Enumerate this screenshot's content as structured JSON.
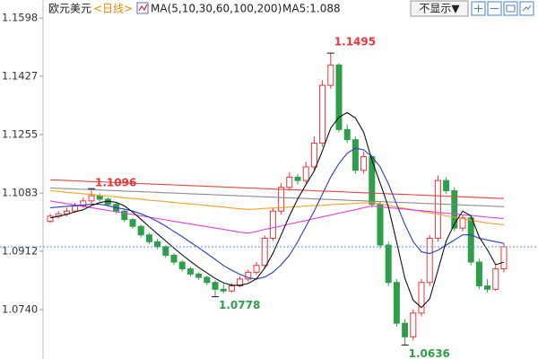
{
  "chart_data": {
    "type": "candlestick",
    "title": "欧元美元",
    "period": "<日线>",
    "ma_label": "MA(5,10,30,60,100,200)",
    "ma5_label": "MA5:1.088",
    "button": "不显示▼",
    "ylim": [
      1.0608,
      1.163
    ],
    "yticks": [
      1.1598,
      1.1427,
      1.1255,
      1.1083,
      1.0912,
      {
        "value": 1.074,
        "label": "1.0740"
      }
    ],
    "up_color": "#e8353b",
    "down_color": "#2e9e4a",
    "open": [
      1.1,
      1.1015,
      1.1022,
      1.103,
      1.1045,
      1.106,
      1.1075,
      1.1065,
      1.105,
      1.103,
      1.1005,
      1.0985,
      1.096,
      1.094,
      1.0925,
      1.09,
      1.088,
      1.086,
      1.0845,
      1.0835,
      1.082,
      1.08,
      1.0795,
      1.081,
      1.083,
      1.085,
      1.087,
      1.095,
      1.103,
      1.11,
      1.113,
      1.112,
      1.116,
      1.123,
      1.14,
      1.146,
      1.127,
      1.124,
      1.115,
      1.119,
      1.105,
      1.093,
      1.082,
      1.07,
      1.066,
      1.073,
      1.082,
      1.095,
      1.112,
      1.109,
      1.098,
      1.101,
      1.088,
      1.081,
      1.08,
      1.086
    ],
    "high": [
      1.1022,
      1.103,
      1.104,
      1.1055,
      1.107,
      1.1096,
      1.1082,
      1.107,
      1.1055,
      1.1036,
      1.101,
      1.099,
      1.0966,
      1.0948,
      1.093,
      1.0906,
      1.0886,
      1.0866,
      1.085,
      1.084,
      1.0826,
      1.0815,
      1.0818,
      1.0838,
      1.0858,
      1.088,
      1.0958,
      1.104,
      1.1112,
      1.1145,
      1.1138,
      1.1175,
      1.125,
      1.1415,
      1.1495,
      1.1465,
      1.1285,
      1.125,
      1.1205,
      1.1195,
      1.106,
      1.094,
      1.083,
      1.0712,
      1.074,
      1.083,
      1.096,
      1.1135,
      1.113,
      1.11,
      1.102,
      1.1015,
      1.089,
      1.083,
      1.087,
      1.0935
    ],
    "low": [
      1.0995,
      1.1008,
      1.1015,
      1.1025,
      1.104,
      1.1052,
      1.1058,
      1.1042,
      1.1022,
      1.0998,
      1.0978,
      1.0952,
      1.0932,
      1.0918,
      1.0892,
      1.0872,
      1.0852,
      1.0838,
      1.0828,
      1.0812,
      1.0778,
      1.0788,
      1.079,
      1.0805,
      1.0822,
      1.0842,
      1.0862,
      1.0942,
      1.102,
      1.109,
      1.1108,
      1.1112,
      1.115,
      1.122,
      1.139,
      1.1262,
      1.123,
      1.114,
      1.114,
      1.104,
      1.092,
      1.081,
      1.069,
      1.0636,
      1.065,
      1.072,
      1.081,
      1.094,
      1.108,
      1.097,
      1.097,
      1.087,
      1.08,
      1.079,
      1.0795,
      1.085
    ],
    "close": [
      1.1015,
      1.1022,
      1.103,
      1.1045,
      1.106,
      1.1075,
      1.1065,
      1.105,
      1.103,
      1.1005,
      1.0985,
      1.096,
      1.094,
      1.0925,
      1.09,
      1.088,
      1.086,
      1.0845,
      1.0835,
      1.082,
      1.08,
      1.0795,
      1.081,
      1.083,
      1.085,
      1.087,
      1.095,
      1.103,
      1.11,
      1.113,
      1.112,
      1.116,
      1.123,
      1.14,
      1.146,
      1.127,
      1.124,
      1.115,
      1.119,
      1.105,
      1.093,
      1.082,
      1.07,
      1.066,
      1.073,
      1.082,
      1.095,
      1.112,
      1.109,
      1.098,
      1.101,
      1.088,
      1.081,
      1.08,
      1.086,
      1.0925
    ],
    "series": [
      {
        "name": "MA200",
        "color": "#e0473f",
        "values": [
          1.1122,
          1.1121,
          1.112,
          1.1119,
          1.1118,
          1.1117,
          1.1116,
          1.1115,
          1.1114,
          1.1113,
          1.1112,
          1.1111,
          1.111,
          1.1109,
          1.1108,
          1.1107,
          1.1106,
          1.1105,
          1.1104,
          1.1103,
          1.1102,
          1.1101,
          1.11,
          1.1099,
          1.1098,
          1.1097,
          1.1096,
          1.1095,
          1.1094,
          1.1093,
          1.1092,
          1.1091,
          1.109,
          1.1089,
          1.1088,
          1.1087,
          1.1086,
          1.1085,
          1.1084,
          1.1083,
          1.1082,
          1.1081,
          1.108,
          1.1079,
          1.1078,
          1.1077,
          1.1076,
          1.1075,
          1.1074,
          1.1073,
          1.1072,
          1.1071,
          1.107,
          1.1069,
          1.1068,
          1.1067
        ]
      },
      {
        "name": "MA100",
        "color": "#8c8c8c",
        "values": [
          1.1098,
          1.1097,
          1.1096,
          1.1095,
          1.1094,
          1.1093,
          1.1092,
          1.1091,
          1.109,
          1.1089,
          1.1088,
          1.1087,
          1.1086,
          1.1085,
          1.1084,
          1.1083,
          1.1082,
          1.1081,
          1.108,
          1.1079,
          1.1078,
          1.1077,
          1.1076,
          1.1075,
          1.1074,
          1.1073,
          1.1072,
          1.1071,
          1.107,
          1.1069,
          1.1068,
          1.1067,
          1.1066,
          1.1065,
          1.1064,
          1.1063,
          1.1062,
          1.1061,
          1.106,
          1.1059,
          1.1058,
          1.1057,
          1.1056,
          1.1055,
          1.1054,
          1.1053,
          1.1052,
          1.1051,
          1.105,
          1.1049,
          1.1048,
          1.1047,
          1.1046,
          1.1045,
          1.1044,
          1.1043
        ]
      },
      {
        "name": "MA60",
        "color": "#f5a020",
        "values": [
          1.109,
          1.1088,
          1.1085,
          1.1083,
          1.1081,
          1.1079,
          1.1076,
          1.1074,
          1.1072,
          1.1069,
          1.1067,
          1.1065,
          1.1062,
          1.106,
          1.1058,
          1.1055,
          1.1053,
          1.1051,
          1.1049,
          1.1046,
          1.1044,
          1.1042,
          1.1039,
          1.1037,
          1.1035,
          1.1036,
          1.1038,
          1.1039,
          1.104,
          1.1042,
          1.1043,
          1.1045,
          1.1046,
          1.1047,
          1.1049,
          1.105,
          1.1051,
          1.1053,
          1.1054,
          1.1055,
          1.1051,
          1.1047,
          1.1042,
          1.1038,
          1.1034,
          1.1029,
          1.1025,
          1.1021,
          1.1016,
          1.1012,
          1.1008,
          1.1003,
          1.0999,
          1.0995,
          1.0992,
          1.099
        ]
      },
      {
        "name": "MA30",
        "color": "#e23ee0",
        "values": [
          1.106,
          1.1056,
          1.1052,
          1.1048,
          1.1044,
          1.104,
          1.1036,
          1.1032,
          1.1028,
          1.1024,
          1.102,
          1.1016,
          1.1012,
          1.1008,
          1.1004,
          1.1,
          1.0996,
          1.0992,
          1.0988,
          1.0984,
          1.098,
          1.0976,
          1.0972,
          1.0968,
          1.0965,
          1.097,
          1.0976,
          1.0981,
          1.0986,
          1.0992,
          1.0997,
          1.1002,
          1.1008,
          1.1013,
          1.1018,
          1.1024,
          1.1029,
          1.1034,
          1.104,
          1.1045,
          1.1043,
          1.104,
          1.1038,
          1.1036,
          1.1033,
          1.1031,
          1.1029,
          1.1026,
          1.1024,
          1.1022,
          1.1019,
          1.1017,
          1.1015,
          1.1012,
          1.101,
          1.1008
        ]
      },
      {
        "name": "MA10",
        "color": "#2b3dbd",
        "values": [
          1.104,
          1.1042,
          1.1044,
          1.1046,
          1.1048,
          1.105,
          1.105,
          1.1046,
          1.104,
          1.1036,
          1.103,
          1.1022,
          1.1012,
          1.1,
          1.0986,
          1.097,
          1.0955,
          1.0938,
          1.0922,
          1.0905,
          1.0888,
          1.087,
          1.0856,
          1.0844,
          1.0834,
          1.083,
          1.0836,
          1.085,
          1.0872,
          1.09,
          1.094,
          1.0985,
          1.103,
          1.108,
          1.113,
          1.117,
          1.12,
          1.1215,
          1.121,
          1.119,
          1.116,
          1.111,
          1.105,
          1.099,
          1.094,
          1.091,
          1.0905,
          1.0915,
          1.093,
          1.0945,
          1.096,
          1.096,
          1.095,
          1.0945,
          1.094,
          1.0935
        ]
      },
      {
        "name": "MA5",
        "color": "#111111",
        "values": [
          1.101,
          1.1015,
          1.102,
          1.1028,
          1.1034,
          1.1046,
          1.1055,
          1.1059,
          1.1056,
          1.1045,
          1.1027,
          1.1006,
          1.0984,
          1.0963,
          1.0942,
          1.0921,
          1.0901,
          1.0882,
          1.0864,
          1.0848,
          1.0832,
          1.0819,
          1.0812,
          1.0812,
          1.0817,
          1.0831,
          1.0862,
          1.0906,
          1.096,
          1.1016,
          1.1066,
          1.1108,
          1.1148,
          1.1208,
          1.1274,
          1.1306,
          1.132,
          1.1304,
          1.1262,
          1.118,
          1.1112,
          1.1042,
          1.0938,
          1.0832,
          1.0768,
          1.0746,
          1.0772,
          1.0856,
          1.0942,
          1.0992,
          1.103,
          1.1016,
          1.0954,
          1.0916,
          1.0872,
          1.088
        ]
      }
    ]
  }
}
